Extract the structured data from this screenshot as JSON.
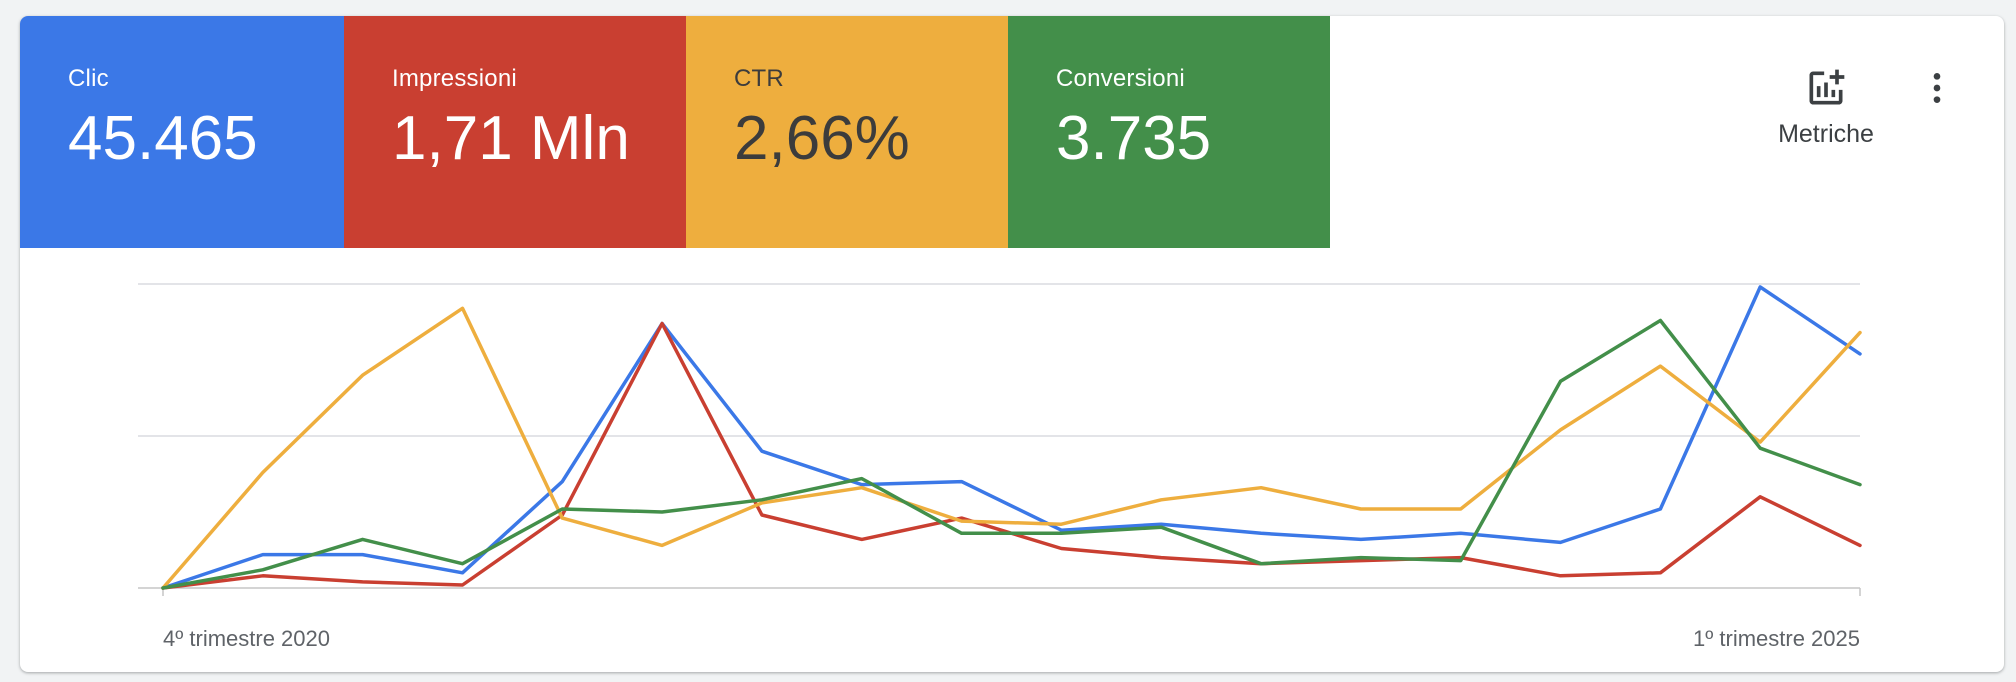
{
  "scorecards": [
    {
      "label": "Clic",
      "value": "45.465",
      "bg": "#3b78e7",
      "fg": "#ffffff"
    },
    {
      "label": "Impressioni",
      "value": "1,71 Mln",
      "bg": "#c93f31",
      "fg": "#ffffff"
    },
    {
      "label": "CTR",
      "value": "2,66%",
      "bg": "#eeae3e",
      "fg": "#3c3c3c"
    },
    {
      "label": "Conversioni",
      "value": "3.735",
      "bg": "#438f4a",
      "fg": "#ffffff"
    }
  ],
  "toolbar": {
    "metrics_label": "Metriche",
    "metrics_icon": "add-chart-icon",
    "more_icon": "more-vert-icon"
  },
  "chart_data": {
    "type": "line",
    "x_start_label": "4º trimestre 2020",
    "x_end_label": "1º trimestre 2025",
    "y_range": [
      0,
      100
    ],
    "gridlines": 3,
    "series": [
      {
        "color": "#3b78e7",
        "values": [
          0,
          11,
          11,
          5,
          35,
          87,
          45,
          34,
          35,
          19,
          21,
          18,
          16,
          18,
          15,
          26,
          99,
          77
        ]
      },
      {
        "color": "#c93f31",
        "values": [
          0,
          4,
          2,
          1,
          24,
          87,
          24,
          16,
          23,
          13,
          10,
          8,
          9,
          10,
          4,
          5,
          30,
          14
        ]
      },
      {
        "color": "#eeae3e",
        "values": [
          0,
          38,
          70,
          92,
          23,
          14,
          28,
          33,
          22,
          21,
          29,
          33,
          26,
          26,
          52,
          73,
          48,
          84
        ]
      },
      {
        "color": "#438f4a",
        "values": [
          0,
          6,
          16,
          8,
          26,
          25,
          29,
          36,
          18,
          18,
          20,
          8,
          10,
          9,
          68,
          88,
          46,
          34
        ]
      }
    ]
  }
}
